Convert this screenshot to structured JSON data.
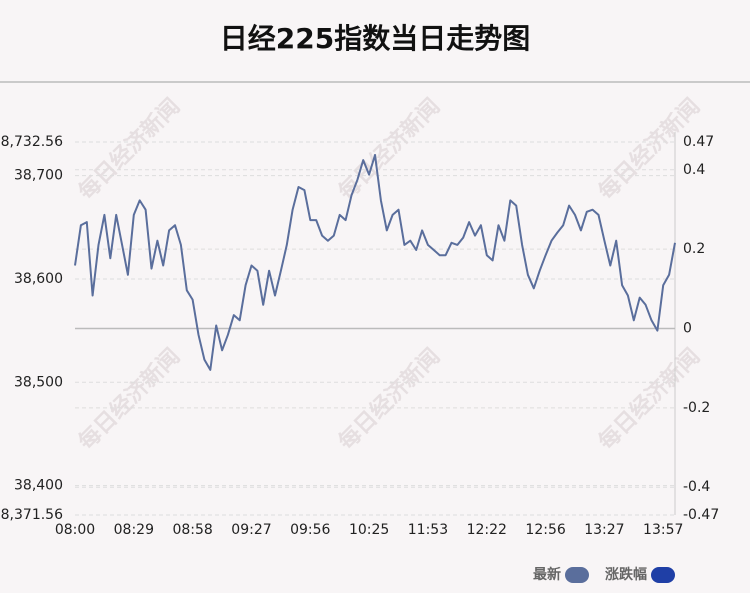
{
  "chart_data": {
    "type": "line",
    "title": "日经225指数当日走势图",
    "watermark": "每日经济新闻",
    "categories": [
      "08:00",
      null,
      null,
      null,
      null,
      null,
      null,
      null,
      null,
      null,
      "08:29",
      null,
      null,
      null,
      null,
      null,
      null,
      null,
      null,
      null,
      "08:58",
      null,
      null,
      null,
      null,
      null,
      null,
      null,
      null,
      null,
      "09:27",
      null,
      null,
      null,
      null,
      null,
      null,
      null,
      null,
      null,
      "09:56",
      null,
      null,
      null,
      null,
      null,
      null,
      null,
      null,
      null,
      "10:25",
      null,
      null,
      null,
      null,
      null,
      null,
      null,
      null,
      null,
      "11:53",
      null,
      null,
      null,
      null,
      null,
      null,
      null,
      null,
      null,
      "12:22",
      null,
      null,
      null,
      null,
      null,
      null,
      null,
      null,
      null,
      "12:56",
      null,
      null,
      null,
      null,
      null,
      null,
      null,
      null,
      null,
      "13:27",
      null,
      null,
      null,
      null,
      null,
      null,
      null,
      null,
      null,
      "13:57",
      null,
      null
    ],
    "series": [
      {
        "name": "最新",
        "color": "#5a6e9c",
        "values": [
          38613,
          38652,
          38655,
          38584,
          38633,
          38662,
          38620,
          38662,
          38633,
          38604,
          38662,
          38676,
          38667,
          38610,
          38637,
          38613,
          38647,
          38652,
          38633,
          38589,
          38580,
          38546,
          38522,
          38512,
          38555,
          38531,
          38546,
          38565,
          38560,
          38594,
          38613,
          38608,
          38575,
          38608,
          38584,
          38608,
          38633,
          38667,
          38689,
          38686,
          38657,
          38657,
          38642,
          38637,
          38642,
          38662,
          38657,
          38681,
          38696,
          38715,
          38701,
          38720,
          38676,
          38647,
          38662,
          38667,
          38633,
          38637,
          38628,
          38647,
          38633,
          38628,
          38623,
          38623,
          38635,
          38633,
          38640,
          38655,
          38642,
          38652,
          38623,
          38618,
          38652,
          38637,
          38676,
          38671,
          38633,
          38604,
          38591,
          38608,
          38623,
          38637,
          38645,
          38652,
          38671,
          38662,
          38647,
          38665,
          38667,
          38662,
          38637,
          38613,
          38637,
          38594,
          38584,
          38560,
          38582,
          38575,
          38560,
          38550,
          38594,
          38604,
          38635
        ]
      },
      {
        "name": "涨跌幅",
        "color": "#1f3fa6",
        "axis": "y2"
      }
    ],
    "ylim": [
      38371.56,
      38732.56
    ],
    "yticks": [
      {
        "value": 38371.56,
        "label": "38,371.56"
      },
      {
        "value": 38400,
        "label": "38,400"
      },
      {
        "value": 38500,
        "label": "38,500"
      },
      {
        "value": 38600,
        "label": "38,600"
      },
      {
        "value": 38700,
        "label": "38,700"
      },
      {
        "value": 38732.56,
        "label": "38,732.56"
      }
    ],
    "y2lim": [
      -0.47,
      0.47
    ],
    "y2ticks": [
      -0.47,
      -0.4,
      -0.2,
      0,
      0.2,
      0.4,
      0.47
    ],
    "grid": true
  }
}
